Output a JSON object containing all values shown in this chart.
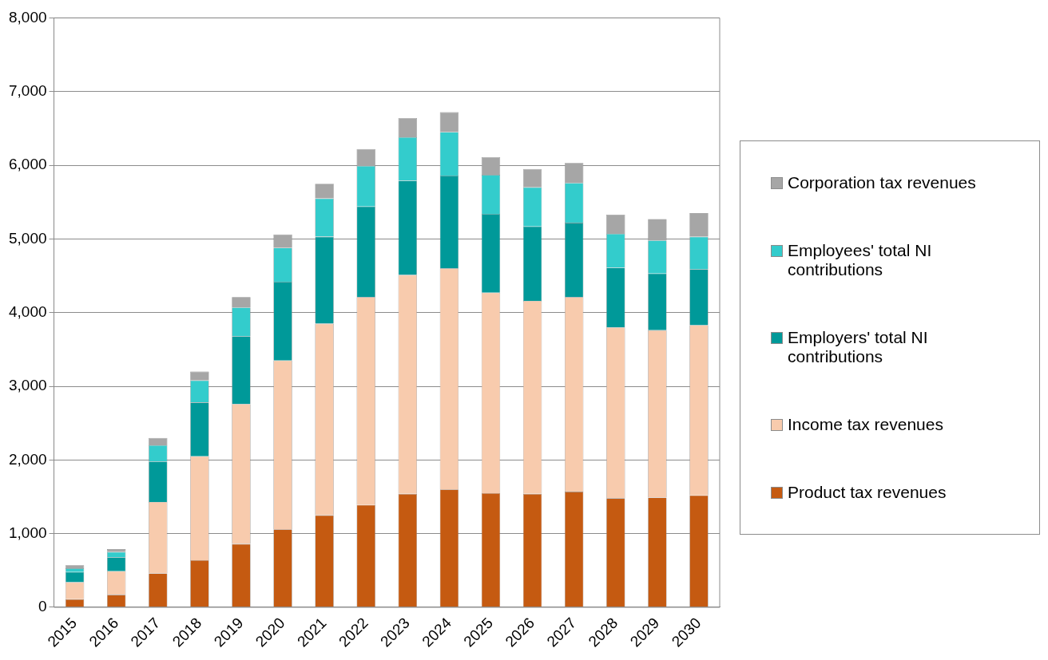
{
  "chart_data": {
    "type": "bar",
    "stacked": true,
    "categories": [
      "2015",
      "2016",
      "2017",
      "2018",
      "2019",
      "2020",
      "2021",
      "2022",
      "2023",
      "2024",
      "2025",
      "2026",
      "2027",
      "2028",
      "2029",
      "2030"
    ],
    "series": [
      {
        "name": "Product tax revenues",
        "color": "#c55a11",
        "values": [
          110,
          170,
          460,
          640,
          860,
          1060,
          1250,
          1390,
          1540,
          1600,
          1550,
          1540,
          1570,
          1480,
          1490,
          1520
        ]
      },
      {
        "name": "Income tax revenues",
        "color": "#f8cbad",
        "values": [
          230,
          320,
          970,
          1410,
          1900,
          2290,
          2600,
          2820,
          2970,
          3000,
          2720,
          2620,
          2640,
          2320,
          2270,
          2310
        ]
      },
      {
        "name": "Employers' total NI contributions",
        "color": "#009999",
        "values": [
          140,
          190,
          550,
          730,
          920,
          1070,
          1180,
          1230,
          1280,
          1260,
          1070,
          1010,
          1010,
          810,
          770,
          760
        ]
      },
      {
        "name": "Employees' total NI contributions",
        "color": "#33cccc",
        "values": [
          50,
          70,
          220,
          300,
          390,
          460,
          520,
          550,
          590,
          590,
          530,
          530,
          540,
          460,
          450,
          440
        ]
      },
      {
        "name": "Corporation tax revenues",
        "color": "#a6a6a6",
        "values": [
          40,
          40,
          100,
          120,
          140,
          180,
          200,
          230,
          260,
          270,
          240,
          250,
          270,
          260,
          290,
          320
        ]
      }
    ],
    "ylim": [
      0,
      8000
    ],
    "yticks": [
      0,
      {
        "value": 1000,
        "label": "1,000"
      },
      {
        "value": 2000,
        "label": "2,000"
      },
      {
        "value": 3000,
        "label": "3,000"
      },
      {
        "value": 4000,
        "label": "4,000"
      },
      {
        "value": 5000,
        "label": "5,000"
      },
      {
        "value": 6000,
        "label": "6,000"
      },
      {
        "value": 7000,
        "label": "7,000"
      },
      {
        "value": 8000,
        "label": "8,000"
      }
    ],
    "grid": "y",
    "legend": "right"
  }
}
